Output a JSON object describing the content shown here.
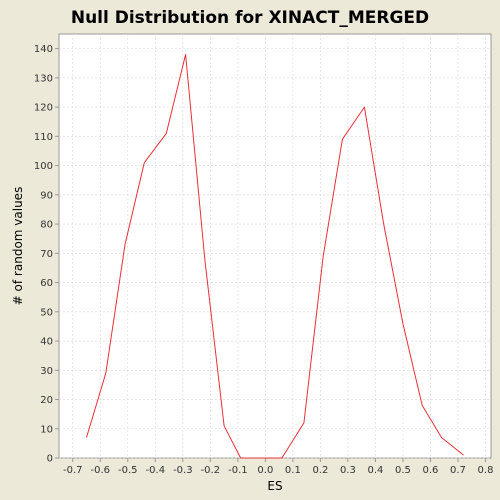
{
  "chart_data": {
    "type": "line",
    "title": "Null Distribution for XINACT_MERGED",
    "xlabel": "ES",
    "ylabel": "# of random values",
    "xlim": [
      -0.75,
      0.82
    ],
    "ylim": [
      0,
      145
    ],
    "x_ticks": [
      "-0.7",
      "-0.6",
      "-0.5",
      "-0.4",
      "-0.3",
      "-0.2",
      "-0.1",
      "0.0",
      "0.1",
      "0.2",
      "0.3",
      "0.4",
      "0.5",
      "0.6",
      "0.7",
      "0.8"
    ],
    "y_ticks": [
      "0",
      "10",
      "20",
      "30",
      "40",
      "50",
      "60",
      "70",
      "80",
      "90",
      "100",
      "110",
      "120",
      "130",
      "140"
    ],
    "grid": true,
    "series": [
      {
        "color": "#e8303a",
        "x": [
          -0.65,
          -0.58,
          -0.51,
          -0.44,
          -0.36,
          -0.29,
          -0.22,
          -0.15,
          -0.09,
          -0.02,
          0.06,
          0.14,
          0.21,
          0.28,
          0.36,
          0.43,
          0.5,
          0.57,
          0.64,
          0.72
        ],
        "y": [
          7,
          29,
          73,
          101,
          111,
          138,
          68,
          11,
          0,
          0,
          0,
          12,
          69,
          109,
          120,
          80,
          46,
          18,
          7,
          1
        ]
      }
    ]
  },
  "colors": {
    "background": "#ece9d8",
    "plot_background": "#ffffff",
    "grid": "#d9d9d9",
    "axis": "#999999"
  }
}
